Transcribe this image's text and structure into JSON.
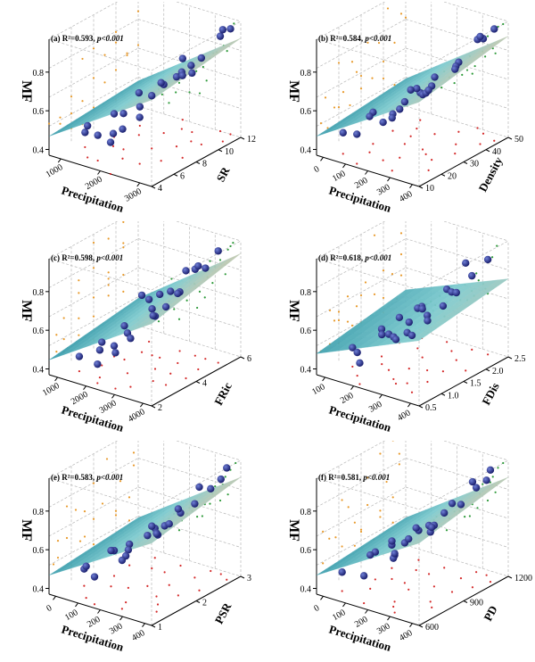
{
  "figure": {
    "palette": {
      "sphere": "#1a1f6e",
      "sphere_highlight": "#6f7fd6",
      "surface_low": "#1f8a9e",
      "surface_mid": "#7ecbcf",
      "surface_high": "#d8c8a6",
      "scatter_orange": "#e89a2c",
      "scatter_green": "#2e9a3a",
      "scatter_red": "#d42a2a",
      "gridline": "#b8b8b8"
    }
  },
  "chart_data": [
    {
      "type": "scatter",
      "panel": "(a)",
      "stats": {
        "r2_text": "R²=0.593,",
        "p_text": "p<0.001"
      },
      "zlabel": "MF",
      "xlabel": "Precipitation",
      "ylabel": "SR",
      "xticks": [
        "1000",
        "2000",
        "3000"
      ],
      "yticks": [
        "4",
        "6",
        "8",
        "10",
        "12"
      ],
      "zticks": [
        "0.4",
        "0.6",
        "0.8"
      ],
      "xlim": [
        500,
        3500
      ],
      "ylim": [
        4,
        12
      ],
      "zlim": [
        0.35,
        0.9
      ],
      "surface": {
        "z_at_corners": [
          [
            0.44,
            0.47
          ],
          [
            0.76,
            0.82
          ]
        ]
      },
      "points": [
        [
          900,
          6,
          0.42
        ],
        [
          1100,
          8,
          0.46
        ],
        [
          1300,
          5,
          0.5
        ],
        [
          1500,
          9,
          0.55
        ],
        [
          1700,
          7,
          0.52
        ],
        [
          1900,
          10,
          0.58
        ],
        [
          2000,
          6,
          0.49
        ],
        [
          2200,
          8,
          0.6
        ],
        [
          2400,
          11,
          0.63
        ],
        [
          2600,
          9,
          0.68
        ],
        [
          2800,
          7,
          0.72
        ],
        [
          3000,
          10,
          0.76
        ],
        [
          3200,
          12,
          0.85
        ],
        [
          1200,
          10,
          0.44
        ],
        [
          1600,
          5,
          0.47
        ],
        [
          2100,
          11,
          0.62
        ],
        [
          2500,
          6,
          0.57
        ],
        [
          2900,
          12,
          0.8
        ],
        [
          3100,
          8,
          0.74
        ],
        [
          1400,
          7,
          0.41
        ],
        [
          1800,
          12,
          0.64
        ],
        [
          2300,
          4,
          0.5
        ],
        [
          2700,
          10,
          0.71
        ],
        [
          3300,
          11,
          0.88
        ]
      ]
    },
    {
      "type": "scatter",
      "panel": "(b)",
      "stats": {
        "r2_text": "R²=0.584,",
        "p_text": "p<0.001"
      },
      "zlabel": "MF",
      "xlabel": "Precipitation",
      "ylabel": "Density",
      "xticks": [
        "0",
        "100",
        "200",
        "300",
        "400"
      ],
      "yticks": [
        "10",
        "20",
        "30",
        "40",
        "50"
      ],
      "zticks": [
        "0.4",
        "0.6",
        "0.8"
      ],
      "xlim": [
        0,
        400
      ],
      "ylim": [
        10,
        50
      ],
      "zlim": [
        0.35,
        0.9
      ],
      "surface": {
        "z_at_corners": [
          [
            0.44,
            0.48
          ],
          [
            0.75,
            0.83
          ]
        ]
      },
      "points": [
        [
          60,
          15,
          0.45
        ],
        [
          90,
          25,
          0.5
        ],
        [
          120,
          20,
          0.52
        ],
        [
          150,
          35,
          0.57
        ],
        [
          170,
          30,
          0.55
        ],
        [
          200,
          40,
          0.62
        ],
        [
          220,
          22,
          0.58
        ],
        [
          250,
          45,
          0.68
        ],
        [
          270,
          28,
          0.64
        ],
        [
          300,
          38,
          0.72
        ],
        [
          320,
          48,
          0.8
        ],
        [
          340,
          33,
          0.75
        ],
        [
          360,
          42,
          0.86
        ],
        [
          100,
          45,
          0.48
        ],
        [
          140,
          12,
          0.49
        ],
        [
          190,
          18,
          0.53
        ],
        [
          240,
          30,
          0.61
        ],
        [
          280,
          50,
          0.77
        ],
        [
          310,
          26,
          0.7
        ],
        [
          350,
          20,
          0.73
        ],
        [
          80,
          35,
          0.43
        ],
        [
          260,
          14,
          0.6
        ],
        [
          380,
          46,
          0.88
        ],
        [
          130,
          40,
          0.54
        ]
      ]
    },
    {
      "type": "scatter",
      "panel": "(c)",
      "stats": {
        "r2_text": "R²=0.598,",
        "p_text": "p<0.001"
      },
      "zlabel": "MF",
      "xlabel": "Precipitation",
      "ylabel": "FRic",
      "xticks": [
        "1000",
        "2000",
        "3000",
        "4000"
      ],
      "yticks": [
        "2",
        "4",
        "6"
      ],
      "zticks": [
        "0.4",
        "0.6",
        "0.8"
      ],
      "xlim": [
        0,
        4000
      ],
      "ylim": [
        1,
        7
      ],
      "zlim": [
        0.35,
        0.9
      ],
      "surface": {
        "z_at_corners": [
          [
            0.42,
            0.48
          ],
          [
            0.74,
            0.84
          ]
        ]
      },
      "points": [
        [
          600,
          2,
          0.42
        ],
        [
          900,
          3,
          0.46
        ],
        [
          1200,
          4,
          0.51
        ],
        [
          1400,
          2,
          0.48
        ],
        [
          1700,
          5,
          0.57
        ],
        [
          1900,
          3,
          0.54
        ],
        [
          2200,
          6,
          0.63
        ],
        [
          2400,
          4,
          0.6
        ],
        [
          2700,
          5,
          0.68
        ],
        [
          2900,
          3,
          0.66
        ],
        [
          3200,
          6,
          0.78
        ],
        [
          3500,
          5,
          0.84
        ],
        [
          3700,
          6,
          0.88
        ],
        [
          1000,
          6,
          0.55
        ],
        [
          1600,
          1.5,
          0.44
        ],
        [
          2000,
          5,
          0.65
        ],
        [
          2600,
          2,
          0.58
        ],
        [
          3000,
          4,
          0.74
        ],
        [
          3400,
          3,
          0.72
        ],
        [
          800,
          4,
          0.4
        ],
        [
          2300,
          1.5,
          0.52
        ],
        [
          3600,
          4,
          0.86
        ],
        [
          1300,
          5,
          0.62
        ],
        [
          2800,
          6,
          0.76
        ]
      ]
    },
    {
      "type": "scatter",
      "panel": "(d)",
      "stats": {
        "r2_text": "R²=0.618,",
        "p_text": "p<0.001"
      },
      "zlabel": "MF",
      "xlabel": "Precipitation",
      "ylabel": "FDis",
      "xticks": [
        "100",
        "200",
        "300",
        "400"
      ],
      "yticks": [
        "0.5",
        "1.0",
        "1.5",
        "2.0",
        "2.5"
      ],
      "zticks": [
        "0.4",
        "0.6",
        "0.8"
      ],
      "xlim": [
        0,
        450
      ],
      "ylim": [
        0.5,
        2.5
      ],
      "zlim": [
        0.35,
        0.9
      ],
      "surface": {
        "z_at_corners": [
          [
            0.45,
            0.52
          ],
          [
            0.66,
            0.72
          ]
        ]
      },
      "points": [
        [
          60,
          1.0,
          0.44
        ],
        [
          90,
          1.5,
          0.48
        ],
        [
          120,
          0.8,
          0.46
        ],
        [
          150,
          2.0,
          0.54
        ],
        [
          180,
          1.2,
          0.52
        ],
        [
          210,
          1.8,
          0.58
        ],
        [
          240,
          1.0,
          0.55
        ],
        [
          260,
          2.2,
          0.63
        ],
        [
          290,
          1.5,
          0.61
        ],
        [
          320,
          2.0,
          0.67
        ],
        [
          350,
          1.2,
          0.64
        ],
        [
          380,
          2.4,
          0.8
        ],
        [
          400,
          1.8,
          0.86
        ],
        [
          110,
          2.3,
          0.5
        ],
        [
          170,
          0.6,
          0.45
        ],
        [
          230,
          1.4,
          0.57
        ],
        [
          270,
          0.9,
          0.56
        ],
        [
          310,
          2.4,
          0.7
        ],
        [
          340,
          1.6,
          0.66
        ],
        [
          70,
          2.0,
          0.47
        ],
        [
          200,
          2.4,
          0.6
        ],
        [
          360,
          0.8,
          0.62
        ],
        [
          130,
          1.3,
          0.49
        ],
        [
          300,
          1.0,
          0.59
        ]
      ]
    },
    {
      "type": "scatter",
      "panel": "(e)",
      "panel_label_text": "(e)",
      "stats": {
        "r2_text": "R²=0.583,",
        "p_text": "p<0.001"
      },
      "zlabel": "MF",
      "xlabel": "Precipitation",
      "ylabel": "PSR",
      "xticks": [
        "0",
        "100",
        "200",
        "300",
        "400"
      ],
      "yticks": [
        "1",
        "2",
        "3"
      ],
      "zticks": [
        "0.4",
        "0.6",
        "0.8"
      ],
      "xlim": [
        0,
        400
      ],
      "ylim": [
        1,
        3
      ],
      "zlim": [
        0.35,
        0.9
      ],
      "surface": {
        "z_at_corners": [
          [
            0.44,
            0.48
          ],
          [
            0.74,
            0.82
          ]
        ]
      },
      "points": [
        [
          50,
          1.5,
          0.43
        ],
        [
          80,
          2.0,
          0.47
        ],
        [
          110,
          1.2,
          0.5
        ],
        [
          140,
          2.5,
          0.55
        ],
        [
          170,
          1.8,
          0.53
        ],
        [
          200,
          2.8,
          0.6
        ],
        [
          230,
          1.4,
          0.57
        ],
        [
          260,
          2.2,
          0.64
        ],
        [
          290,
          2.6,
          0.7
        ],
        [
          320,
          1.6,
          0.68
        ],
        [
          340,
          2.9,
          0.8
        ],
        [
          360,
          2.3,
          0.84
        ],
        [
          380,
          2.8,
          0.88
        ],
        [
          100,
          2.8,
          0.49
        ],
        [
          160,
          1.1,
          0.48
        ],
        [
          210,
          2.0,
          0.59
        ],
        [
          250,
          1.2,
          0.58
        ],
        [
          300,
          2.9,
          0.74
        ],
        [
          350,
          1.4,
          0.72
        ],
        [
          70,
          2.4,
          0.45
        ],
        [
          190,
          2.5,
          0.57
        ],
        [
          330,
          2.0,
          0.76
        ],
        [
          120,
          1.7,
          0.52
        ],
        [
          280,
          1.8,
          0.65
        ]
      ]
    },
    {
      "type": "scatter",
      "panel": "(f)",
      "stats": {
        "r2_text": "R²=0.581,",
        "p_text": "p<0.001"
      },
      "zlabel": "MF",
      "xlabel": "Precipitation",
      "ylabel": "PD",
      "xticks": [
        "0",
        "100",
        "200",
        "300",
        "400"
      ],
      "yticks": [
        "600",
        "900",
        "1200"
      ],
      "zticks": [
        "0.4",
        "0.6",
        "0.8"
      ],
      "xlim": [
        0,
        400
      ],
      "ylim": [
        600,
        1300
      ],
      "zlim": [
        0.35,
        0.9
      ],
      "surface": {
        "z_at_corners": [
          [
            0.44,
            0.48
          ],
          [
            0.74,
            0.82
          ]
        ]
      },
      "points": [
        [
          50,
          700,
          0.44
        ],
        [
          80,
          900,
          0.48
        ],
        [
          110,
          800,
          0.51
        ],
        [
          140,
          1100,
          0.55
        ],
        [
          170,
          950,
          0.54
        ],
        [
          200,
          1200,
          0.61
        ],
        [
          230,
          750,
          0.57
        ],
        [
          260,
          1000,
          0.64
        ],
        [
          290,
          1150,
          0.7
        ],
        [
          320,
          850,
          0.68
        ],
        [
          340,
          1250,
          0.8
        ],
        [
          360,
          1100,
          0.85
        ],
        [
          380,
          1200,
          0.88
        ],
        [
          100,
          1200,
          0.49
        ],
        [
          160,
          650,
          0.48
        ],
        [
          210,
          900,
          0.59
        ],
        [
          250,
          700,
          0.58
        ],
        [
          300,
          1250,
          0.75
        ],
        [
          350,
          800,
          0.73
        ],
        [
          70,
          1050,
          0.46
        ],
        [
          190,
          1100,
          0.58
        ],
        [
          330,
          1000,
          0.77
        ],
        [
          120,
          950,
          0.53
        ],
        [
          280,
          650,
          0.63
        ]
      ]
    }
  ]
}
